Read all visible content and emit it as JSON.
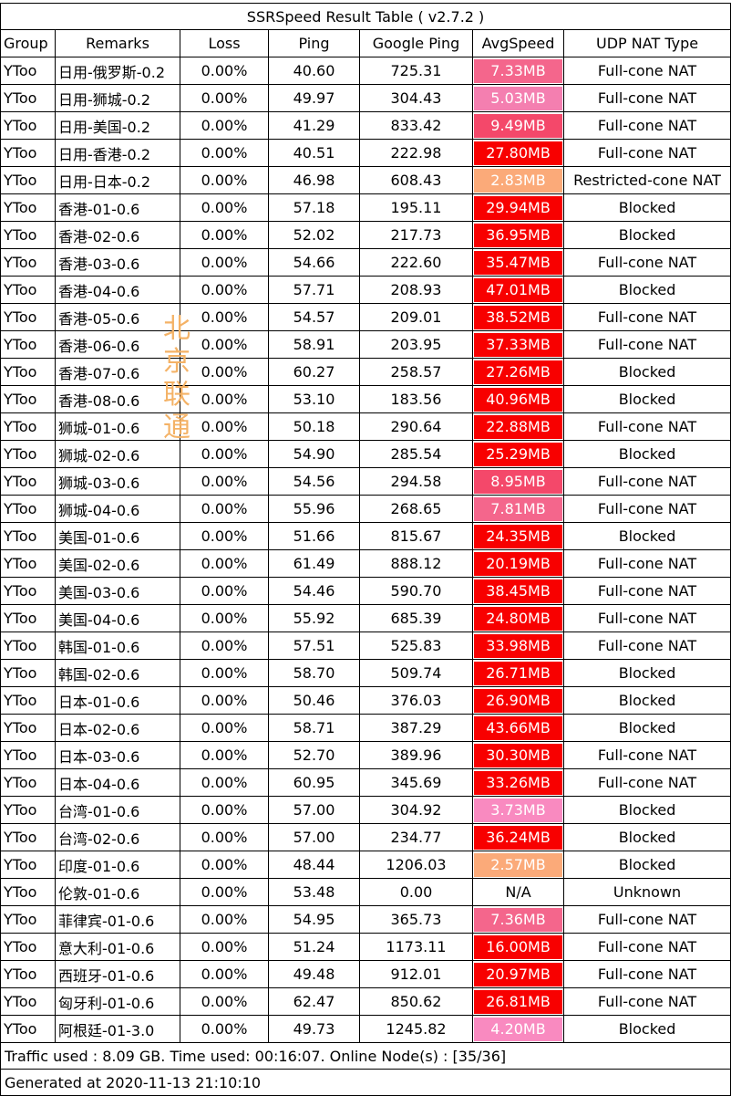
{
  "title": "SSRSpeed Result Table ( v2.7.2 )",
  "columns": [
    "Group",
    "Remarks",
    "Loss",
    "Ping",
    "Google Ping",
    "AvgSpeed",
    "UDP NAT Type"
  ],
  "rows": [
    {
      "group": "YToo",
      "remarks": "日用-俄罗斯-0.2",
      "loss": "0.00%",
      "ping": "40.60",
      "gping": "725.31",
      "speed": "7.33MB",
      "color": "#f4668c",
      "nat": "Full-cone NAT"
    },
    {
      "group": "YToo",
      "remarks": "日用-狮城-0.2",
      "loss": "0.00%",
      "ping": "49.97",
      "gping": "304.43",
      "speed": "5.03MB",
      "color": "#f47fb0",
      "nat": "Full-cone NAT"
    },
    {
      "group": "YToo",
      "remarks": "日用-美国-0.2",
      "loss": "0.00%",
      "ping": "41.29",
      "gping": "833.42",
      "speed": "9.49MB",
      "color": "#f4486a",
      "nat": "Full-cone NAT"
    },
    {
      "group": "YToo",
      "remarks": "日用-香港-0.2",
      "loss": "0.00%",
      "ping": "40.51",
      "gping": "222.98",
      "speed": "27.80MB",
      "color": "#f80000",
      "nat": "Full-cone NAT"
    },
    {
      "group": "YToo",
      "remarks": "日用-日本-0.2",
      "loss": "0.00%",
      "ping": "46.98",
      "gping": "608.43",
      "speed": "2.83MB",
      "color": "#fbaa79",
      "nat": "Restricted-cone NAT"
    },
    {
      "group": "YToo",
      "remarks": "香港-01-0.6",
      "loss": "0.00%",
      "ping": "57.18",
      "gping": "195.11",
      "speed": "29.94MB",
      "color": "#f80000",
      "nat": "Blocked"
    },
    {
      "group": "YToo",
      "remarks": "香港-02-0.6",
      "loss": "0.00%",
      "ping": "52.02",
      "gping": "217.73",
      "speed": "36.95MB",
      "color": "#f80000",
      "nat": "Blocked"
    },
    {
      "group": "YToo",
      "remarks": "香港-03-0.6",
      "loss": "0.00%",
      "ping": "54.66",
      "gping": "222.60",
      "speed": "35.47MB",
      "color": "#f80000",
      "nat": "Full-cone NAT"
    },
    {
      "group": "YToo",
      "remarks": "香港-04-0.6",
      "loss": "0.00%",
      "ping": "57.71",
      "gping": "208.93",
      "speed": "47.01MB",
      "color": "#f80000",
      "nat": "Blocked"
    },
    {
      "group": "YToo",
      "remarks": "香港-05-0.6",
      "loss": "0.00%",
      "ping": "54.57",
      "gping": "209.01",
      "speed": "38.52MB",
      "color": "#f80000",
      "nat": "Full-cone NAT"
    },
    {
      "group": "YToo",
      "remarks": "香港-06-0.6",
      "loss": "0.00%",
      "ping": "58.91",
      "gping": "203.95",
      "speed": "37.33MB",
      "color": "#f80000",
      "nat": "Full-cone NAT"
    },
    {
      "group": "YToo",
      "remarks": "香港-07-0.6",
      "loss": "0.00%",
      "ping": "60.27",
      "gping": "258.57",
      "speed": "27.26MB",
      "color": "#f80000",
      "nat": "Blocked"
    },
    {
      "group": "YToo",
      "remarks": "香港-08-0.6",
      "loss": "0.00%",
      "ping": "53.10",
      "gping": "183.56",
      "speed": "40.96MB",
      "color": "#f80000",
      "nat": "Blocked"
    },
    {
      "group": "YToo",
      "remarks": "狮城-01-0.6",
      "loss": "0.00%",
      "ping": "50.18",
      "gping": "290.64",
      "speed": "22.88MB",
      "color": "#f80000",
      "nat": "Full-cone NAT"
    },
    {
      "group": "YToo",
      "remarks": "狮城-02-0.6",
      "loss": "0.00%",
      "ping": "54.90",
      "gping": "285.54",
      "speed": "25.29MB",
      "color": "#f80000",
      "nat": "Blocked"
    },
    {
      "group": "YToo",
      "remarks": "狮城-03-0.6",
      "loss": "0.00%",
      "ping": "54.56",
      "gping": "294.58",
      "speed": "8.95MB",
      "color": "#f4486a",
      "nat": "Full-cone NAT"
    },
    {
      "group": "YToo",
      "remarks": "狮城-04-0.6",
      "loss": "0.00%",
      "ping": "55.96",
      "gping": "268.65",
      "speed": "7.81MB",
      "color": "#f4668c",
      "nat": "Full-cone NAT"
    },
    {
      "group": "YToo",
      "remarks": "美国-01-0.6",
      "loss": "0.00%",
      "ping": "51.66",
      "gping": "815.67",
      "speed": "24.35MB",
      "color": "#f80000",
      "nat": "Blocked"
    },
    {
      "group": "YToo",
      "remarks": "美国-02-0.6",
      "loss": "0.00%",
      "ping": "61.49",
      "gping": "888.12",
      "speed": "20.19MB",
      "color": "#f80000",
      "nat": "Full-cone NAT"
    },
    {
      "group": "YToo",
      "remarks": "美国-03-0.6",
      "loss": "0.00%",
      "ping": "54.46",
      "gping": "590.70",
      "speed": "38.45MB",
      "color": "#f80000",
      "nat": "Full-cone NAT"
    },
    {
      "group": "YToo",
      "remarks": "美国-04-0.6",
      "loss": "0.00%",
      "ping": "55.92",
      "gping": "685.39",
      "speed": "24.80MB",
      "color": "#f80000",
      "nat": "Full-cone NAT"
    },
    {
      "group": "YToo",
      "remarks": "韩国-01-0.6",
      "loss": "0.00%",
      "ping": "57.51",
      "gping": "525.83",
      "speed": "33.98MB",
      "color": "#f80000",
      "nat": "Full-cone NAT"
    },
    {
      "group": "YToo",
      "remarks": "韩国-02-0.6",
      "loss": "0.00%",
      "ping": "58.70",
      "gping": "509.74",
      "speed": "26.71MB",
      "color": "#f80000",
      "nat": "Blocked"
    },
    {
      "group": "YToo",
      "remarks": "日本-01-0.6",
      "loss": "0.00%",
      "ping": "50.46",
      "gping": "376.03",
      "speed": "26.90MB",
      "color": "#f80000",
      "nat": "Blocked"
    },
    {
      "group": "YToo",
      "remarks": "日本-02-0.6",
      "loss": "0.00%",
      "ping": "58.71",
      "gping": "387.29",
      "speed": "43.66MB",
      "color": "#f80000",
      "nat": "Blocked"
    },
    {
      "group": "YToo",
      "remarks": "日本-03-0.6",
      "loss": "0.00%",
      "ping": "52.70",
      "gping": "389.96",
      "speed": "30.30MB",
      "color": "#f80000",
      "nat": "Full-cone NAT"
    },
    {
      "group": "YToo",
      "remarks": "日本-04-0.6",
      "loss": "0.00%",
      "ping": "60.95",
      "gping": "345.69",
      "speed": "33.26MB",
      "color": "#f80000",
      "nat": "Full-cone NAT"
    },
    {
      "group": "YToo",
      "remarks": "台湾-01-0.6",
      "loss": "0.00%",
      "ping": "57.00",
      "gping": "304.92",
      "speed": "3.73MB",
      "color": "#f98ac0",
      "nat": "Blocked"
    },
    {
      "group": "YToo",
      "remarks": "台湾-02-0.6",
      "loss": "0.00%",
      "ping": "57.00",
      "gping": "234.77",
      "speed": "36.24MB",
      "color": "#f80000",
      "nat": "Blocked"
    },
    {
      "group": "YToo",
      "remarks": "印度-01-0.6",
      "loss": "0.00%",
      "ping": "48.44",
      "gping": "1206.03",
      "speed": "2.57MB",
      "color": "#fbaa79",
      "nat": "Blocked"
    },
    {
      "group": "YToo",
      "remarks": "伦敦-01-0.6",
      "loss": "0.00%",
      "ping": "53.48",
      "gping": "0.00",
      "speed": "N/A",
      "color": "#ffffff",
      "nat": "Unknown"
    },
    {
      "group": "YToo",
      "remarks": "菲律宾-01-0.6",
      "loss": "0.00%",
      "ping": "54.95",
      "gping": "365.73",
      "speed": "7.36MB",
      "color": "#f4668c",
      "nat": "Full-cone NAT"
    },
    {
      "group": "YToo",
      "remarks": "意大利-01-0.6",
      "loss": "0.00%",
      "ping": "51.24",
      "gping": "1173.11",
      "speed": "16.00MB",
      "color": "#f80000",
      "nat": "Full-cone NAT"
    },
    {
      "group": "YToo",
      "remarks": "西班牙-01-0.6",
      "loss": "0.00%",
      "ping": "49.48",
      "gping": "912.01",
      "speed": "20.97MB",
      "color": "#f80000",
      "nat": "Full-cone NAT"
    },
    {
      "group": "YToo",
      "remarks": "匈牙利-01-0.6",
      "loss": "0.00%",
      "ping": "62.47",
      "gping": "850.62",
      "speed": "26.81MB",
      "color": "#f80000",
      "nat": "Full-cone NAT"
    },
    {
      "group": "YToo",
      "remarks": "阿根廷-01-3.0",
      "loss": "0.00%",
      "ping": "49.73",
      "gping": "1245.82",
      "speed": "4.20MB",
      "color": "#f98ac0",
      "nat": "Blocked"
    }
  ],
  "footer": {
    "traffic": "Traffic used : 8.09 GB. Time used: 00:16:07. Online Node(s) : [35/36]",
    "generated": "Generated at 2020-11-13 21:10:10"
  },
  "watermark": "北京联通"
}
